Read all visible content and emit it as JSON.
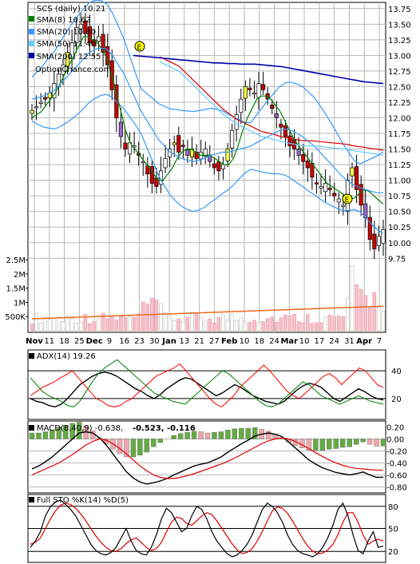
{
  "chart_data": [
    {
      "type": "line",
      "panel": "price",
      "title": "SCS (daily) 10.21",
      "watermark": "OptionChance.com",
      "legend": [
        {
          "label": "SMA(8) 10.62",
          "color": "#008000"
        },
        {
          "label": "SMA(20) 10.80",
          "color": "#3399ff"
        },
        {
          "label": "SMA(50) 11.40",
          "color": "#66ccff"
        },
        {
          "label": "SMA(200) 12.55",
          "color": "#0000aa"
        }
      ],
      "y_ticks": [
        "13.75",
        "13.50",
        "13.25",
        "13.00",
        "12.75",
        "12.50",
        "12.25",
        "12.00",
        "11.75",
        "11.50",
        "11.25",
        "11.00",
        "10.75",
        "10.50",
        "10.25",
        "10.00",
        "9.75"
      ],
      "ylim": [
        9.6,
        13.85
      ],
      "x_ticks": [
        "Nov",
        "11",
        "18",
        "25",
        "Dec",
        "9",
        "16",
        "23",
        "30",
        "Jan",
        "13",
        "21",
        "27",
        "Feb",
        "10",
        "18",
        "24",
        "Mar",
        "10",
        "17",
        "24",
        "31",
        "Apr",
        "7"
      ],
      "closes": [
        12.12,
        12.18,
        12.25,
        12.3,
        12.4,
        12.55,
        12.7,
        12.85,
        13.05,
        13.2,
        13.45,
        13.5,
        13.35,
        13.2,
        13.15,
        13.3,
        13.05,
        12.85,
        12.45,
        12.0,
        11.7,
        11.5,
        11.6,
        11.55,
        11.4,
        11.3,
        11.1,
        10.95,
        10.9,
        11.15,
        11.35,
        11.5,
        11.6,
        11.45,
        11.55,
        11.4,
        11.5,
        11.35,
        11.45,
        11.5,
        11.3,
        11.2,
        11.15,
        11.25,
        11.5,
        11.8,
        12.05,
        12.3,
        12.5,
        12.45,
        12.4,
        12.55,
        12.45,
        12.3,
        12.15,
        12.0,
        11.85,
        11.7,
        11.55,
        11.5,
        11.4,
        11.3,
        11.2,
        11.05,
        10.95,
        10.9,
        10.95,
        10.85,
        10.75,
        10.7,
        10.6,
        11.0,
        11.2,
        10.85,
        10.6,
        10.4,
        10.05,
        9.9,
        10.1,
        10.21
      ],
      "series": [
        {
          "name": "SMA(8)",
          "color": "#008000",
          "values": [
            12.0,
            12.05,
            12.1,
            12.2,
            12.3,
            12.4,
            12.55,
            12.7,
            12.85,
            13.0,
            13.15,
            13.3,
            13.3,
            13.25,
            13.2,
            13.1,
            12.95,
            12.7,
            12.4,
            12.1,
            11.8,
            11.6,
            11.5,
            11.4,
            11.3,
            11.2,
            11.1,
            11.0,
            11.0,
            11.1,
            11.2,
            11.35,
            11.45,
            11.5,
            11.5,
            11.45,
            11.4,
            11.4,
            11.4,
            11.35,
            11.3,
            11.25,
            11.25,
            11.35,
            11.55,
            11.8,
            12.0,
            12.15,
            12.3,
            12.35,
            12.35,
            12.3,
            12.2,
            12.1,
            11.95,
            11.8,
            11.65,
            11.55,
            11.45,
            11.35,
            11.25,
            11.15,
            11.05,
            10.95,
            10.9,
            10.85,
            10.8,
            10.75,
            10.7,
            10.72,
            10.8,
            10.85,
            10.82,
            10.75,
            10.68,
            10.62
          ]
        },
        {
          "name": "SMA(20)",
          "color": "#3399ff",
          "values": [
            12.3,
            12.32,
            12.35,
            12.4,
            12.45,
            12.55,
            12.65,
            12.75,
            12.85,
            12.95,
            13.05,
            13.1,
            13.12,
            13.1,
            13.0,
            12.85,
            12.7,
            12.5,
            12.3,
            12.1,
            11.95,
            11.8,
            11.65,
            11.55,
            11.45,
            11.4,
            11.35,
            11.32,
            11.3,
            11.32,
            11.35,
            11.4,
            11.42,
            11.45,
            11.45,
            11.47,
            11.5,
            11.52,
            11.55,
            11.6,
            11.65,
            11.7,
            11.75,
            11.8,
            11.82,
            11.8,
            11.75,
            11.7,
            11.62,
            11.55,
            11.45,
            11.35,
            11.25,
            11.15,
            11.05,
            10.98,
            10.92,
            10.88,
            10.85,
            10.82,
            10.8,
            10.8
          ]
        },
        {
          "name": "SMA(50)",
          "color": "#66ccff",
          "values": [
            null,
            null,
            null,
            null,
            null,
            null,
            null,
            null,
            null,
            null,
            null,
            null,
            null,
            null,
            null,
            null,
            null,
            null,
            null,
            null,
            12.9,
            12.85,
            12.8,
            12.75,
            12.65,
            12.55,
            12.45,
            12.35,
            12.25,
            12.15,
            12.05,
            11.98,
            11.9,
            11.85,
            11.8,
            11.75,
            11.7,
            11.68,
            11.65,
            11.62,
            11.6,
            11.58,
            11.56,
            11.55,
            11.55,
            11.54,
            11.53,
            11.52,
            11.51,
            11.5,
            11.48,
            11.46,
            11.45,
            11.43,
            11.42,
            11.4
          ]
        },
        {
          "name": "SMA(200)",
          "color": "#0000aa",
          "values": [
            null,
            null,
            null,
            null,
            null,
            null,
            null,
            null,
            null,
            null,
            null,
            null,
            null,
            null,
            null,
            13.0,
            12.99,
            12.98,
            12.97,
            12.96,
            12.95,
            12.94,
            12.93,
            12.92,
            12.91,
            12.9,
            12.89,
            12.88,
            12.88,
            12.87,
            12.87,
            12.86,
            12.86,
            12.86,
            12.85,
            12.84,
            12.83,
            12.82,
            12.8,
            12.78,
            12.76,
            12.74,
            12.72,
            12.7,
            12.68,
            12.66,
            12.64,
            12.62,
            12.6,
            12.58,
            12.57,
            12.56,
            12.55
          ]
        }
      ],
      "volume_ticks": [
        "2.5M",
        "2M",
        "1.5M",
        "1M",
        "500K"
      ],
      "volume_max": 2.7
    },
    {
      "type": "line",
      "panel": "adx",
      "title": "ADX(14) 19.26",
      "y_ticks": [
        "40",
        "20"
      ],
      "ylim": [
        5,
        55
      ],
      "series": [
        {
          "name": "ADX",
          "color": "#000000",
          "values": [
            20,
            18,
            17,
            15,
            14,
            16,
            20,
            25,
            30,
            33,
            36,
            38,
            39,
            38,
            36,
            33,
            30,
            27,
            25,
            22,
            20,
            23,
            27,
            30,
            33,
            35,
            34,
            31,
            28,
            25,
            22,
            24,
            27,
            30,
            28,
            25,
            22,
            20,
            18,
            17,
            16,
            18,
            22,
            26,
            29,
            31,
            30,
            28,
            24,
            20,
            18,
            21,
            24,
            27,
            25,
            22,
            20,
            19
          ]
        },
        {
          "name": "+DI",
          "color": "#ff0000",
          "values": [
            22,
            25,
            28,
            30,
            32,
            35,
            37,
            40,
            35,
            30,
            25,
            20,
            18,
            15,
            14,
            15,
            18,
            20,
            24,
            28,
            32,
            36,
            38,
            40,
            42,
            45,
            40,
            35,
            30,
            25,
            20,
            16,
            14,
            18,
            22,
            28,
            32,
            36,
            40,
            44,
            40,
            35,
            30,
            25,
            22,
            20,
            24,
            28,
            32,
            36,
            38,
            35,
            30,
            34,
            38,
            42,
            40,
            35,
            30,
            28
          ]
        },
        {
          "name": "-DI",
          "color": "#008000",
          "values": [
            35,
            30,
            25,
            22,
            20,
            18,
            15,
            14,
            18,
            25,
            32,
            38,
            42,
            45,
            48,
            44,
            40,
            36,
            32,
            28,
            24,
            22,
            20,
            18,
            17,
            16,
            20,
            24,
            28,
            32,
            36,
            40,
            38,
            34,
            30,
            26,
            22,
            18,
            15,
            14,
            16,
            20,
            24,
            28,
            32,
            30,
            26,
            22,
            20,
            18,
            16,
            18,
            20,
            22,
            20,
            18,
            17,
            16
          ]
        }
      ]
    },
    {
      "type": "bar",
      "panel": "macd",
      "title": "MACD(8,40,9) -0.638,",
      "values_text": [
        "-0.523,",
        "-0.116"
      ],
      "values_colors": [
        "#dd0000",
        "#2255cc"
      ],
      "y_ticks": [
        "0.20",
        "0.00",
        "-0.20",
        "-0.40",
        "-0.60",
        "-0.80"
      ],
      "ylim": [
        -0.9,
        0.3
      ],
      "series": [
        {
          "name": "MACD",
          "color": "#000000",
          "values": [
            -0.5,
            -0.45,
            -0.38,
            -0.3,
            -0.2,
            -0.1,
            0.0,
            0.1,
            0.12,
            0.1,
            0.02,
            -0.1,
            -0.25,
            -0.4,
            -0.55,
            -0.65,
            -0.72,
            -0.75,
            -0.73,
            -0.7,
            -0.66,
            -0.6,
            -0.55,
            -0.5,
            -0.45,
            -0.42,
            -0.4,
            -0.35,
            -0.3,
            -0.22,
            -0.15,
            -0.08,
            -0.02,
            0.05,
            0.08,
            0.1,
            0.08,
            0.04,
            -0.05,
            -0.15,
            -0.25,
            -0.35,
            -0.42,
            -0.48,
            -0.52,
            -0.56,
            -0.58,
            -0.6,
            -0.58,
            -0.55,
            -0.6,
            -0.64,
            -0.638
          ]
        },
        {
          "name": "Signal",
          "color": "#dd0000",
          "values": [
            -0.6,
            -0.55,
            -0.5,
            -0.45,
            -0.4,
            -0.33,
            -0.26,
            -0.18,
            -0.1,
            -0.04,
            0.0,
            -0.02,
            -0.08,
            -0.16,
            -0.25,
            -0.35,
            -0.45,
            -0.53,
            -0.6,
            -0.64,
            -0.66,
            -0.66,
            -0.64,
            -0.61,
            -0.58,
            -0.54,
            -0.5,
            -0.46,
            -0.42,
            -0.37,
            -0.32,
            -0.26,
            -0.2,
            -0.14,
            -0.08,
            -0.03,
            0.0,
            0.02,
            0.0,
            -0.04,
            -0.1,
            -0.16,
            -0.23,
            -0.29,
            -0.35,
            -0.4,
            -0.44,
            -0.47,
            -0.49,
            -0.5,
            -0.51,
            -0.52,
            -0.523
          ]
        },
        {
          "name": "Histogram",
          "color": "#66aa44",
          "values": [
            0.1,
            0.1,
            0.12,
            0.15,
            0.2,
            0.23,
            0.26,
            0.28,
            0.22,
            0.14,
            0.02,
            -0.08,
            -0.17,
            -0.24,
            -0.3,
            -0.3,
            -0.27,
            -0.22,
            -0.13,
            -0.06,
            0.0,
            0.06,
            0.09,
            0.11,
            0.13,
            0.12,
            0.1,
            0.11,
            0.12,
            0.15,
            0.17,
            0.18,
            0.18,
            0.19,
            0.16,
            0.13,
            0.08,
            0.02,
            -0.05,
            -0.11,
            -0.15,
            -0.19,
            -0.19,
            -0.19,
            -0.17,
            -0.16,
            -0.14,
            -0.13,
            -0.09,
            -0.05,
            -0.09,
            -0.12,
            -0.116
          ]
        }
      ]
    },
    {
      "type": "line",
      "panel": "stochastic",
      "title": "Full STO %K(14) %D(5)",
      "y_ticks": [
        "80",
        "50",
        "20"
      ],
      "ylim": [
        0,
        100
      ],
      "series": [
        {
          "name": "%K",
          "color": "#000000",
          "values": [
            20,
            30,
            45,
            70,
            85,
            92,
            95,
            88,
            80,
            70,
            55,
            40,
            25,
            15,
            10,
            8,
            12,
            20,
            35,
            50,
            30,
            15,
            10,
            8,
            20,
            40,
            65,
            82,
            75,
            60,
            45,
            50,
            70,
            85,
            80,
            65,
            45,
            30,
            20,
            10,
            5,
            8,
            15,
            25,
            40,
            60,
            80,
            90,
            85,
            75,
            60,
            40,
            25,
            15,
            10,
            8,
            5,
            10,
            20,
            35,
            55,
            80,
            90,
            70,
            40,
            15,
            10,
            30,
            45,
            20,
            22
          ]
        },
        {
          "name": "%D",
          "color": "#dd0000",
          "values": [
            25,
            28,
            35,
            50,
            65,
            78,
            87,
            90,
            88,
            82,
            73,
            62,
            50,
            38,
            28,
            20,
            15,
            14,
            18,
            26,
            32,
            35,
            28,
            20,
            15,
            18,
            28,
            45,
            60,
            68,
            66,
            58,
            55,
            62,
            70,
            75,
            72,
            62,
            50,
            38,
            26,
            16,
            10,
            12,
            18,
            30,
            45,
            62,
            78,
            84,
            82,
            74,
            62,
            48,
            34,
            22,
            14,
            10,
            11,
            16,
            25,
            40,
            60,
            75,
            75,
            60,
            40,
            25,
            30,
            33,
            30
          ]
        }
      ]
    }
  ]
}
